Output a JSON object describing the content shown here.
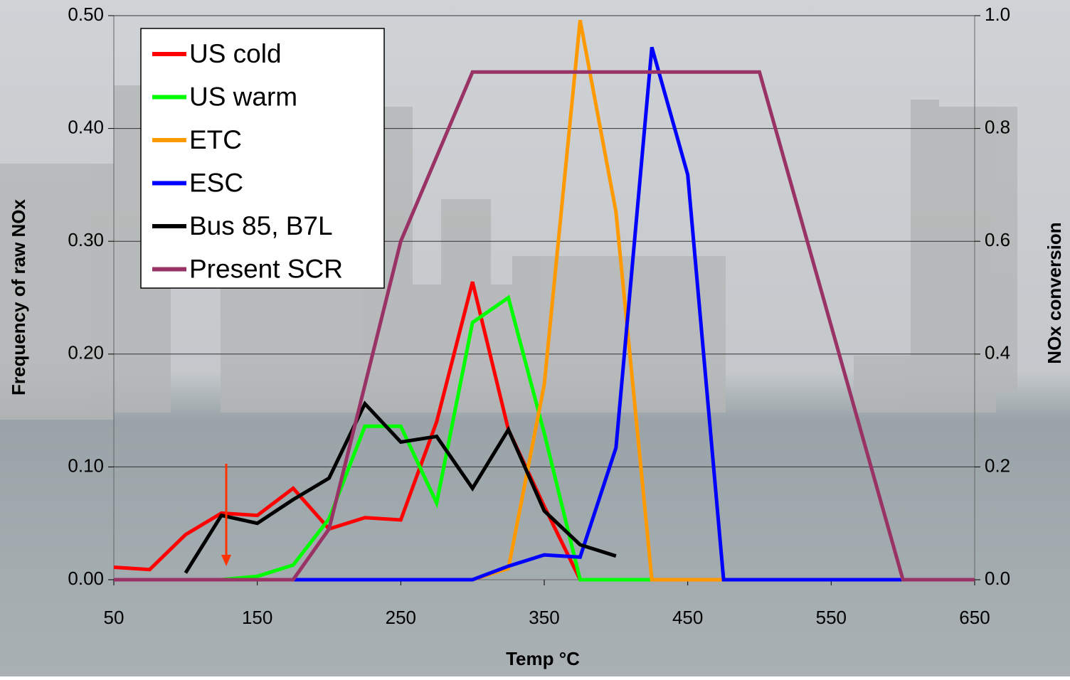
{
  "chart_data": {
    "type": "line",
    "xlabel": "Temp °C",
    "ylabel": "Frequency of raw NOx",
    "y2label": "NOx conversion",
    "xlim": [
      50,
      650
    ],
    "xticks": [
      50,
      150,
      250,
      350,
      450,
      550,
      650
    ],
    "ylim": [
      0,
      0.5
    ],
    "yticks": [
      {
        "value": 0,
        "label": "0.00"
      },
      {
        "value": 0.1,
        "label": "0.10"
      },
      {
        "value": 0.2,
        "label": "0.20"
      },
      {
        "value": 0.3,
        "label": "0.30"
      },
      {
        "value": 0.4,
        "label": "0.40"
      },
      {
        "value": 0.5,
        "label": "0.50"
      }
    ],
    "y2lim": [
      0,
      1
    ],
    "y2ticks": [
      {
        "value": 0,
        "label": "0.0"
      },
      {
        "value": 0.2,
        "label": "0.2"
      },
      {
        "value": 0.4,
        "label": "0.4"
      },
      {
        "value": 0.6,
        "label": "0.6"
      },
      {
        "value": 0.8,
        "label": "0.8"
      },
      {
        "value": 1,
        "label": "1.0"
      }
    ],
    "grid": true,
    "legend": "upper left",
    "series": [
      {
        "name": "US cold",
        "color": "#ff0000",
        "x": [
          50,
          75,
          100,
          125,
          150,
          175,
          200,
          225,
          250,
          275,
          300,
          325,
          350,
          375
        ],
        "values": [
          0.011,
          0.009,
          0.04,
          0.059,
          0.057,
          0.081,
          0.045,
          0.055,
          0.053,
          0.14,
          0.264,
          0.133,
          0.065,
          0
        ]
      },
      {
        "name": "US warm",
        "color": "#00ff00",
        "x": [
          125,
          150,
          175,
          200,
          225,
          250,
          275,
          300,
          325,
          350,
          375,
          400,
          425
        ],
        "values": [
          0,
          0.003,
          0.013,
          0.054,
          0.136,
          0.136,
          0.068,
          0.228,
          0.25,
          0.13,
          0,
          0,
          0
        ]
      },
      {
        "name": "ETC",
        "color": "#ff9900",
        "x": [
          300,
          325,
          350,
          375,
          400,
          425,
          450,
          475
        ],
        "values": [
          0,
          0.01,
          0.173,
          0.496,
          0.326,
          0,
          0,
          0
        ]
      },
      {
        "name": "ESC",
        "color": "#0000ff",
        "x": [
          175,
          200,
          225,
          250,
          275,
          300,
          325,
          350,
          375,
          400,
          425,
          450,
          475,
          500,
          525,
          550,
          575,
          600,
          625,
          650
        ],
        "values": [
          0,
          0,
          0,
          0,
          0,
          0,
          0.012,
          0.022,
          0.02,
          0.117,
          0.472,
          0.359,
          0,
          0,
          0,
          0,
          0,
          0,
          0,
          0
        ]
      },
      {
        "name": "Bus 85, B7L",
        "color": "#000000",
        "x": [
          100,
          125,
          150,
          175,
          200,
          225,
          250,
          275,
          300,
          325,
          350,
          375,
          400
        ],
        "values": [
          0.006,
          0.057,
          0.05,
          0.071,
          0.09,
          0.156,
          0.122,
          0.127,
          0.081,
          0.133,
          0.061,
          0.031,
          0.021
        ]
      },
      {
        "name": "Present SCR",
        "color": "#993366",
        "axis": "y2",
        "x": [
          50,
          175,
          200,
          250,
          300,
          500,
          600,
          650
        ],
        "values": [
          0,
          0,
          0.09,
          0.6,
          0.9,
          0.9,
          0,
          0
        ]
      }
    ]
  }
}
